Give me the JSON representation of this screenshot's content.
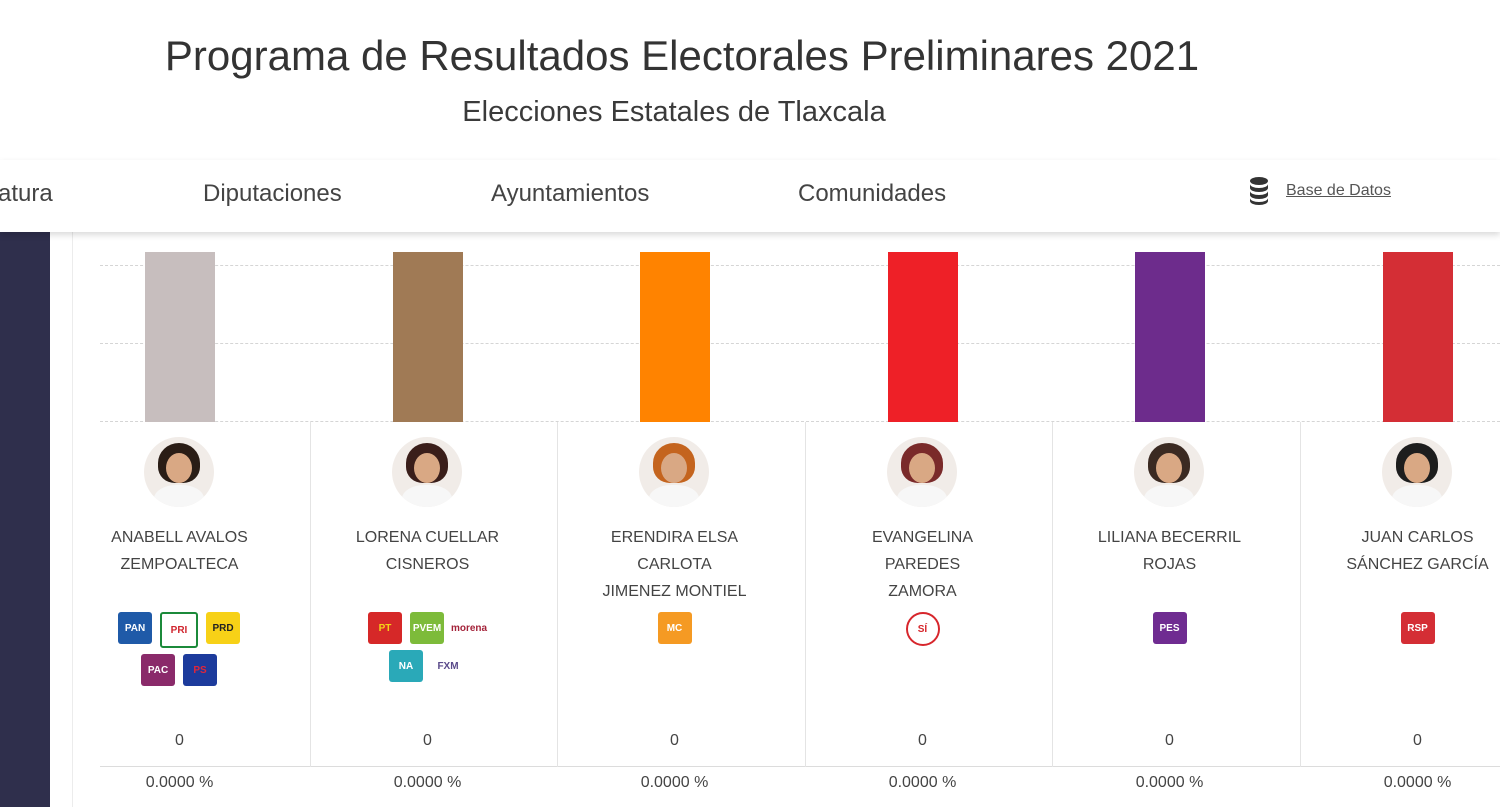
{
  "header": {
    "title": "Programa de Resultados Electorales Preliminares 2021",
    "subtitle": "Elecciones Estatales de Tlaxcala"
  },
  "nav": {
    "items": [
      "atura",
      "Diputaciones",
      "Ayuntamientos",
      "Comunidades"
    ],
    "database_link": "Base de Datos",
    "database_icon": "database-icon"
  },
  "candidates": [
    {
      "name": "ANABELL AVALOS\nZEMPOALTECA",
      "bar_color": "#c7bebe",
      "hair_color": "#2a1d16",
      "votes": "0",
      "percent": "0.0000 %",
      "parties": [
        {
          "label": "PAN",
          "bg": "#1f5aa8",
          "fg": "#ffffff"
        },
        {
          "label": "PRI",
          "bg": "#ffffff",
          "fg": "#d0262f",
          "border": "#1b8a3a"
        },
        {
          "label": "PRD",
          "bg": "#f7d117",
          "fg": "#222222"
        },
        {
          "label": "PAC",
          "bg": "#8a2a6a",
          "fg": "#ffffff"
        },
        {
          "label": "PS",
          "bg": "#1d3b9c",
          "fg": "#e0263a"
        }
      ]
    },
    {
      "name": "LORENA CUELLAR\nCISNEROS",
      "bar_color": "#a07a55",
      "hair_color": "#3a1e1a",
      "votes": "0",
      "percent": "0.0000 %",
      "parties": [
        {
          "label": "PT",
          "bg": "#d62828",
          "fg": "#f5d216"
        },
        {
          "label": "PVEM",
          "bg": "#7dbb3a",
          "fg": "#ffffff"
        },
        {
          "label": "morena",
          "bg": "#ffffff",
          "fg": "#a4233a"
        },
        {
          "label": "NA",
          "bg": "#2aa9b8",
          "fg": "#ffffff"
        },
        {
          "label": "FXM",
          "bg": "#ffffff",
          "fg": "#5a4a8a"
        }
      ]
    },
    {
      "name": "ERENDIRA ELSA\nCARLOTA\nJIMENEZ MONTIEL",
      "bar_color": "#ff8300",
      "hair_color": "#c4641e",
      "votes": "0",
      "percent": "0.0000 %",
      "parties": [
        {
          "label": "MC",
          "bg": "#f59a23",
          "fg": "#ffffff"
        }
      ]
    },
    {
      "name": "EVANGELINA\nPAREDES\nZAMORA",
      "bar_color": "#ee2027",
      "hair_color": "#7a2a2a",
      "votes": "0",
      "percent": "0.0000 %",
      "parties": [
        {
          "label": "SÍ",
          "bg": "#ffffff",
          "fg": "#d7262c",
          "border": "#d7262c",
          "round": true
        }
      ]
    },
    {
      "name": "LILIANA BECERRIL\nROJAS",
      "bar_color": "#6d2c8c",
      "hair_color": "#3b2a22",
      "votes": "0",
      "percent": "0.0000 %",
      "parties": [
        {
          "label": "PES",
          "bg": "#6f2c91",
          "fg": "#ffffff"
        }
      ]
    },
    {
      "name": "JUAN CARLOS\nSÁNCHEZ GARCÍA",
      "bar_color": "#d42e35",
      "hair_color": "#1d1d1d",
      "votes": "0",
      "percent": "0.0000 %",
      "parties": [
        {
          "label": "RSP",
          "bg": "#d42e35",
          "fg": "#ffffff"
        }
      ]
    }
  ]
}
